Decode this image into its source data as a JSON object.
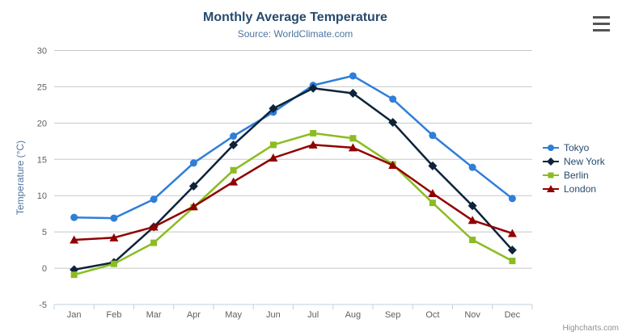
{
  "chart_data": {
    "type": "line",
    "title": "Monthly Average Temperature",
    "subtitle": "Source: WorldClimate.com",
    "xlabel": "",
    "ylabel": "Temperature (°C)",
    "ylim": [
      -5,
      30
    ],
    "ytick_step": 5,
    "grid": true,
    "legend_position": "right",
    "categories": [
      "Jan",
      "Feb",
      "Mar",
      "Apr",
      "May",
      "Jun",
      "Jul",
      "Aug",
      "Sep",
      "Oct",
      "Nov",
      "Dec"
    ],
    "series": [
      {
        "name": "Tokyo",
        "color": "#2f7ed8",
        "marker": "circle",
        "values": [
          7.0,
          6.9,
          9.5,
          14.5,
          18.2,
          21.5,
          25.2,
          26.5,
          23.3,
          18.3,
          13.9,
          9.6
        ]
      },
      {
        "name": "New York",
        "color": "#0d233a",
        "marker": "diamond",
        "values": [
          -0.2,
          0.8,
          5.7,
          11.3,
          17.0,
          22.0,
          24.8,
          24.1,
          20.1,
          14.1,
          8.6,
          2.5
        ]
      },
      {
        "name": "Berlin",
        "color": "#8bbc21",
        "marker": "square",
        "values": [
          -0.9,
          0.6,
          3.5,
          8.4,
          13.5,
          17.0,
          18.6,
          17.9,
          14.3,
          9.0,
          3.9,
          1.0
        ]
      },
      {
        "name": "London",
        "color": "#910000",
        "marker": "triangle",
        "values": [
          3.9,
          4.2,
          5.7,
          8.5,
          11.9,
          15.2,
          17.0,
          16.6,
          14.2,
          10.3,
          6.6,
          4.8
        ]
      }
    ],
    "style": {
      "grid_color": "#c8c8c8",
      "axis_line_color": "#c0d0e0",
      "tick_label_color": "#606060",
      "title_color": "#274b6d",
      "subtitle_color": "#4d759e",
      "yaxis_title_color": "#4d759e",
      "legend_text_color": "#274b6d"
    }
  },
  "credits": {
    "label": "Highcharts.com"
  },
  "context_menu": {
    "icon": "hamburger-menu"
  }
}
